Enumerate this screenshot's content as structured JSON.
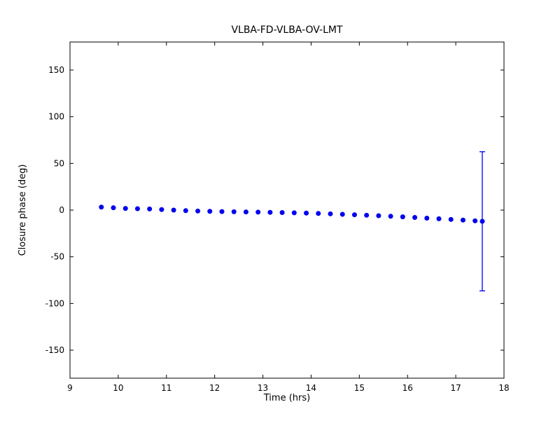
{
  "chart_data": {
    "type": "scatter",
    "title": "VLBA-FD-VLBA-OV-LMT",
    "xlabel": "Time (hrs)",
    "ylabel": "Closure phase (deg)",
    "xlim": [
      9,
      18
    ],
    "ylim": [
      -180,
      180
    ],
    "xticks": [
      9,
      10,
      11,
      12,
      13,
      14,
      15,
      16,
      17,
      18
    ],
    "yticks": [
      -150,
      -100,
      -50,
      0,
      50,
      100,
      150
    ],
    "grid": false,
    "marker_color": "#0000ee",
    "marker_radius": 3.5,
    "series": [
      {
        "name": "closure-phase",
        "x": [
          9.65,
          9.9,
          10.15,
          10.4,
          10.65,
          10.9,
          11.15,
          11.4,
          11.65,
          11.9,
          12.15,
          12.4,
          12.65,
          12.9,
          13.15,
          13.4,
          13.65,
          13.9,
          14.15,
          14.4,
          14.65,
          14.9,
          15.15,
          15.4,
          15.65,
          15.9,
          16.15,
          16.4,
          16.65,
          16.9,
          17.15,
          17.4,
          17.55
        ],
        "y": [
          3.2,
          2.5,
          1.8,
          1.5,
          1.2,
          0.6,
          0.0,
          -0.6,
          -1.0,
          -1.3,
          -1.6,
          -1.8,
          -2.0,
          -2.2,
          -2.4,
          -2.6,
          -2.9,
          -3.2,
          -3.6,
          -4.0,
          -4.5,
          -5.0,
          -5.5,
          -6.0,
          -6.6,
          -7.2,
          -7.9,
          -8.6,
          -9.3,
          -10.0,
          -10.7,
          -11.5,
          -12.0
        ],
        "errorbar": {
          "x": 17.55,
          "y": -12.0,
          "yerr": 74.5
        }
      }
    ]
  }
}
